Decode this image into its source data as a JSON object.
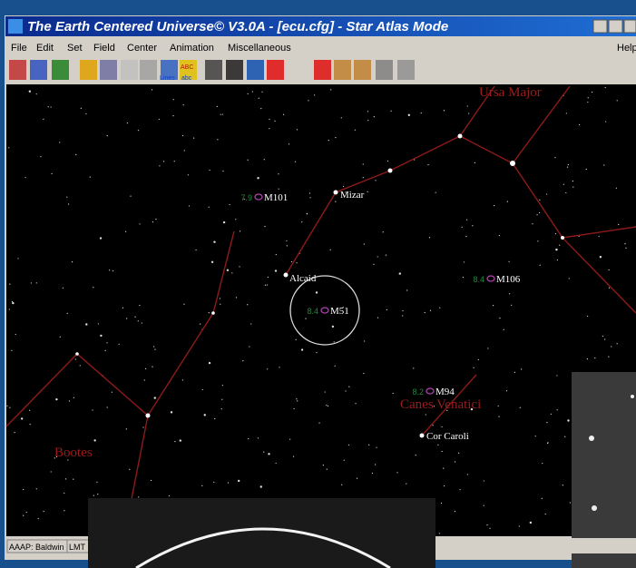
{
  "window": {
    "title": "The Earth Centered Universe© V3.0A - [ecu.cfg] - Star Atlas Mode"
  },
  "menu": [
    "File",
    "Edit",
    "Set",
    "Field",
    "Center",
    "Animation",
    "Miscellaneous",
    "Help"
  ],
  "toolbar": {
    "lines": "Lines",
    "abc_upper": "ABC",
    "abc_lower": "abc"
  },
  "atlas": {
    "constellations": {
      "ursa_major": "Ursa Major",
      "canes_venatici": "Canes Venatici",
      "bootes": "Bootes"
    },
    "stars": {
      "mizar": "Mizar",
      "alcaid": "Alcaid",
      "cor_caroli": "Cor Caroli"
    },
    "objects": [
      {
        "name": "M101",
        "magnitude": "7.9"
      },
      {
        "name": "M106",
        "magnitude": "8.4"
      },
      {
        "name": "M51",
        "magnitude": "8.4"
      },
      {
        "name": "M94",
        "magnitude": "8.2"
      }
    ]
  },
  "status": [
    "AAAP: Baldwin",
    "LMT"
  ]
}
